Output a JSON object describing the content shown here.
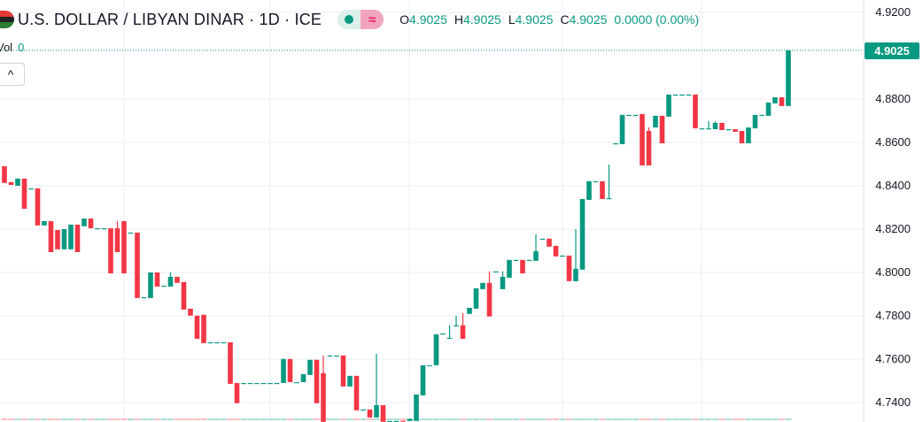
{
  "header": {
    "title": "U.S. DOLLAR / LIBYAN DINAR · 1D · ICE",
    "market_status_icon": "dot-icon",
    "delay_icon": "approx-icon",
    "delay_symbol": "≈",
    "ohlc": [
      {
        "k": "O",
        "v": "4.9025"
      },
      {
        "k": "H",
        "v": "4.9025"
      },
      {
        "k": "L",
        "v": "4.9025"
      },
      {
        "k": "C",
        "v": "4.9025"
      },
      {
        "k": "",
        "v": "0.0000 (0.00%)"
      }
    ],
    "vol_label": "Vol",
    "vol_value": "0",
    "collapse_symbol": "^"
  },
  "colors": {
    "up": "#089981",
    "down": "#F23645",
    "grid": "#F0F3FA"
  },
  "chart_data": {
    "type": "candlestick",
    "title": "U.S. DOLLAR / LIBYAN DINAR · 1D · ICE",
    "ylim": [
      4.7232,
      4.9257
    ],
    "yticks": [
      "4.9200",
      "4.8800",
      "4.8600",
      "4.8400",
      "4.8200",
      "4.8000",
      "4.7800",
      "4.7600",
      "4.7400"
    ],
    "last_price": "4.9025",
    "last_price_value": 4.9025,
    "candles_ohlc": [
      [
        4.849,
        4.849,
        4.8413,
        4.8413
      ],
      [
        4.8417,
        4.8417,
        4.8404,
        4.8404
      ],
      [
        4.84,
        4.8433,
        4.84,
        4.8433
      ],
      [
        4.8433,
        4.8433,
        4.8294,
        4.8294
      ],
      [
        4.8388,
        4.8388,
        4.8388,
        4.8388
      ],
      [
        4.8388,
        4.8388,
        4.8217,
        4.8217
      ],
      [
        4.8217,
        4.8237,
        4.8217,
        4.8237
      ],
      [
        4.8237,
        4.8237,
        4.8094,
        4.8094
      ],
      [
        4.8196,
        4.8196,
        4.8107,
        4.8107
      ],
      [
        4.8107,
        4.82,
        4.8107,
        4.82
      ],
      [
        4.8107,
        4.8221,
        4.8107,
        4.8221
      ],
      [
        4.8221,
        4.8221,
        4.8094,
        4.8094
      ],
      [
        4.8213,
        4.8249,
        4.8213,
        4.8249
      ],
      [
        4.8249,
        4.8249,
        4.8204,
        4.8204
      ],
      [
        4.8204,
        4.8204,
        4.8204,
        4.8204
      ],
      [
        4.8204,
        4.8204,
        4.8204,
        4.8204
      ],
      [
        4.8204,
        4.8204,
        4.7996,
        4.7996
      ],
      [
        4.8204,
        4.8237,
        4.8094,
        4.8094
      ],
      [
        4.8237,
        4.8237,
        4.7996,
        4.7996
      ],
      [
        4.8184,
        4.8184,
        4.8184,
        4.8184
      ],
      [
        4.8184,
        4.8184,
        4.7882,
        4.7882
      ],
      [
        4.7886,
        4.7886,
        4.7886,
        4.7886
      ],
      [
        4.7882,
        4.8,
        4.7882,
        4.8
      ],
      [
        4.8,
        4.8,
        4.7935,
        4.7935
      ],
      [
        4.7939,
        4.7939,
        4.7939,
        4.7939
      ],
      [
        4.7935,
        4.8,
        4.7935,
        4.798
      ],
      [
        4.798,
        4.798,
        4.7952,
        4.7952
      ],
      [
        4.7956,
        4.7956,
        4.7829,
        4.7829
      ],
      [
        4.7833,
        4.7833,
        4.7801,
        4.7801
      ],
      [
        4.7801,
        4.7801,
        4.7694,
        4.7694
      ],
      [
        4.7805,
        4.7805,
        4.7674,
        4.7674
      ],
      [
        4.7678,
        4.7678,
        4.7678,
        4.7678
      ],
      [
        4.7678,
        4.7678,
        4.7678,
        4.7678
      ],
      [
        4.7678,
        4.7678,
        4.7678,
        4.7678
      ],
      [
        4.7678,
        4.7678,
        4.7486,
        4.7486
      ],
      [
        4.749,
        4.749,
        4.7397,
        4.7397
      ],
      [
        4.749,
        4.749,
        4.749,
        4.749
      ],
      [
        4.749,
        4.749,
        4.749,
        4.749
      ],
      [
        4.749,
        4.749,
        4.749,
        4.749
      ],
      [
        4.749,
        4.749,
        4.749,
        4.749
      ],
      [
        4.749,
        4.749,
        4.749,
        4.749
      ],
      [
        4.749,
        4.749,
        4.749,
        4.749
      ],
      [
        4.749,
        4.7601,
        4.749,
        4.7601
      ],
      [
        4.7601,
        4.7601,
        4.7494,
        4.7494
      ],
      [
        4.7494,
        4.7494,
        4.7494,
        4.7494
      ],
      [
        4.7494,
        4.7531,
        4.7494,
        4.7531
      ],
      [
        4.7527,
        4.7597,
        4.7527,
        4.7597
      ],
      [
        4.7597,
        4.7597,
        4.7397,
        4.7397
      ],
      [
        4.7535,
        4.7617,
        4.7311,
        4.7311
      ],
      [
        4.7617,
        4.7617,
        4.7617,
        4.7617
      ],
      [
        4.7617,
        4.7617,
        4.7617,
        4.7617
      ],
      [
        4.7617,
        4.7617,
        4.7474,
        4.7474
      ],
      [
        4.7474,
        4.7523,
        4.7474,
        4.7523
      ],
      [
        4.7523,
        4.7523,
        4.7364,
        4.7364
      ],
      [
        4.7368,
        4.7368,
        4.7368,
        4.7368
      ],
      [
        4.7368,
        4.7368,
        4.7331,
        4.7331
      ],
      [
        4.7331,
        4.7625,
        4.7331,
        4.7388
      ],
      [
        4.7388,
        4.7388,
        4.7311,
        4.7311
      ],
      [
        4.7315,
        4.7315,
        4.7315,
        4.7315
      ],
      [
        4.7315,
        4.7315,
        4.7315,
        4.7315
      ],
      [
        4.7316,
        4.7316,
        4.7315,
        4.7315
      ],
      [
        4.7315,
        4.7325,
        4.7315,
        4.7325
      ],
      [
        4.7315,
        4.7437,
        4.7315,
        4.7437
      ],
      [
        4.7433,
        4.7572,
        4.7433,
        4.7572
      ],
      [
        4.7572,
        4.7572,
        4.7572,
        4.7572
      ],
      [
        4.7572,
        4.7715,
        4.7572,
        4.7715
      ],
      [
        4.7719,
        4.7719,
        4.7719,
        4.7719
      ],
      [
        4.7699,
        4.7756,
        4.7699,
        4.7699
      ],
      [
        4.7756,
        4.78,
        4.7756,
        4.7756
      ],
      [
        4.7756,
        4.7813,
        4.7694,
        4.7694
      ],
      [
        4.7809,
        4.7837,
        4.7809,
        4.7837
      ],
      [
        4.7833,
        4.7927,
        4.7833,
        4.7927
      ],
      [
        4.7923,
        4.7952,
        4.7923,
        4.7952
      ],
      [
        4.7952,
        4.8005,
        4.7797,
        4.7797
      ],
      [
        4.8005,
        4.8005,
        4.8005,
        4.8005
      ],
      [
        4.7923,
        4.8005,
        4.7923,
        4.798
      ],
      [
        4.7976,
        4.8058,
        4.7976,
        4.8058
      ],
      [
        4.8058,
        4.8058,
        4.8058,
        4.8058
      ],
      [
        4.8058,
        4.8058,
        4.7996,
        4.7996
      ],
      [
        4.8058,
        4.8058,
        4.8058,
        4.8058
      ],
      [
        4.8054,
        4.8176,
        4.8054,
        4.8098
      ],
      [
        4.8156,
        4.8156,
        4.8156,
        4.8156
      ],
      [
        4.8156,
        4.8156,
        4.8119,
        4.8119
      ],
      [
        4.8123,
        4.8123,
        4.8074,
        4.8074
      ],
      [
        4.8078,
        4.8078,
        4.8078,
        4.8078
      ],
      [
        4.8078,
        4.8078,
        4.796,
        4.796
      ],
      [
        4.796,
        4.82,
        4.796,
        4.8017
      ],
      [
        4.8013,
        4.8339,
        4.8013,
        4.8339
      ],
      [
        4.8335,
        4.8421,
        4.8335,
        4.8421
      ],
      [
        4.8421,
        4.8421,
        4.8421,
        4.8421
      ],
      [
        4.8421,
        4.8421,
        4.8339,
        4.8339
      ],
      [
        4.8343,
        4.8498,
        4.8343,
        4.8343
      ],
      [
        4.8596,
        4.8596,
        4.8596,
        4.8596
      ],
      [
        4.8592,
        4.8727,
        4.8592,
        4.8727
      ],
      [
        4.8727,
        4.8727,
        4.8727,
        4.8727
      ],
      [
        4.8727,
        4.8727,
        4.8727,
        4.8727
      ],
      [
        4.8731,
        4.8731,
        4.8494,
        4.8494
      ],
      [
        4.8653,
        4.8669,
        4.8494,
        4.8494
      ],
      [
        4.8669,
        4.8723,
        4.8669,
        4.8723
      ],
      [
        4.8723,
        4.8723,
        4.8596,
        4.8596
      ],
      [
        4.8719,
        4.8821,
        4.8719,
        4.8821
      ],
      [
        4.8821,
        4.8821,
        4.8821,
        4.8821
      ],
      [
        4.8821,
        4.8821,
        4.8821,
        4.8821
      ],
      [
        4.8821,
        4.8821,
        4.8821,
        4.8821
      ],
      [
        4.8821,
        4.8821,
        4.8665,
        4.8665
      ],
      [
        4.8665,
        4.8665,
        4.8665,
        4.8665
      ],
      [
        4.8665,
        4.8698,
        4.8665,
        4.8665
      ],
      [
        4.8661,
        4.8698,
        4.8661,
        4.869
      ],
      [
        4.869,
        4.869,
        4.8657,
        4.8657
      ],
      [
        4.8661,
        4.8661,
        4.8661,
        4.8661
      ],
      [
        4.8661,
        4.8661,
        4.8649,
        4.8649
      ],
      [
        4.8653,
        4.8653,
        4.8596,
        4.8596
      ],
      [
        4.8596,
        4.8669,
        4.8596,
        4.8669
      ],
      [
        4.8665,
        4.8727,
        4.8665,
        4.8727
      ],
      [
        4.8727,
        4.8727,
        4.8727,
        4.8727
      ],
      [
        4.8723,
        4.8784,
        4.8723,
        4.8784
      ],
      [
        4.878,
        4.8808,
        4.878,
        4.8808
      ],
      [
        4.8808,
        4.8808,
        4.8768,
        4.8768
      ],
      [
        4.8768,
        4.9025,
        4.8768,
        4.9025
      ]
    ]
  }
}
